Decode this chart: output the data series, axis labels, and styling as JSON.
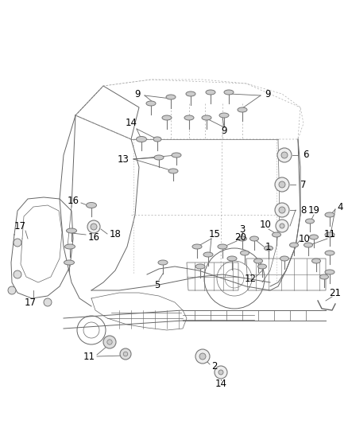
{
  "bg_color": "#ffffff",
  "fig_width": 4.38,
  "fig_height": 5.33,
  "dpi": 100,
  "line_color": "#666666",
  "light_line": "#aaaaaa",
  "label_color": "#000000",
  "label_fontsize": 8.5,
  "plug_fill": "#cccccc",
  "plug_edge": "#777777"
}
